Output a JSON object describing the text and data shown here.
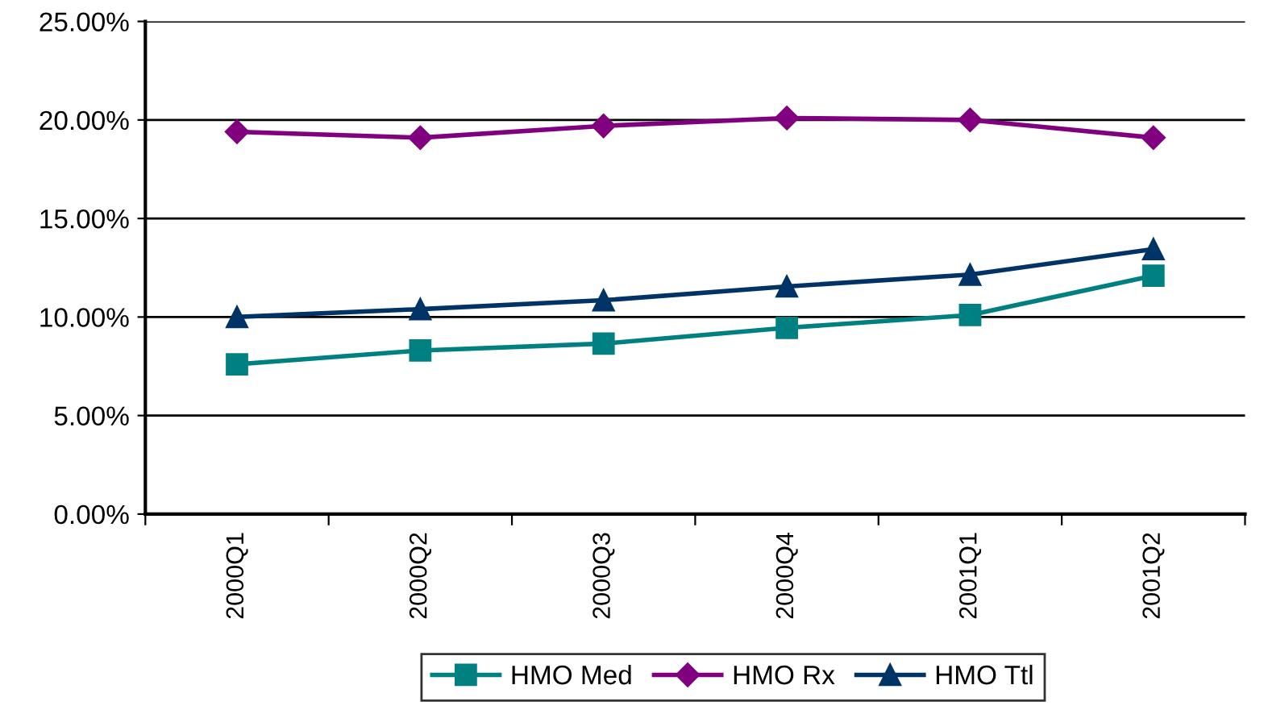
{
  "chart_data": {
    "type": "line",
    "categories": [
      "2000Q1",
      "2000Q2",
      "2000Q3",
      "2000Q4",
      "2001Q1",
      "2001Q2"
    ],
    "series": [
      {
        "name": "HMO Med",
        "color": "#008080",
        "marker": "square",
        "values": [
          7.6,
          8.3,
          8.65,
          9.45,
          10.1,
          12.1
        ]
      },
      {
        "name": "HMO Rx",
        "color": "#800080",
        "marker": "diamond",
        "values": [
          19.4,
          19.1,
          19.7,
          20.1,
          20.0,
          19.1
        ]
      },
      {
        "name": "HMO Ttl",
        "color": "#003366",
        "marker": "triangle",
        "values": [
          10.0,
          10.4,
          10.85,
          11.55,
          12.15,
          13.45
        ]
      }
    ],
    "ylim": [
      0,
      25
    ],
    "yticks": [
      {
        "value": 0,
        "label": "0.00%"
      },
      {
        "value": 5,
        "label": "5.00%"
      },
      {
        "value": 10,
        "label": "10.00%"
      },
      {
        "value": 15,
        "label": "15.00%"
      },
      {
        "value": 20,
        "label": "20.00%"
      },
      {
        "value": 25,
        "label": "25.00%"
      }
    ],
    "grid": "y",
    "legend": "bottom",
    "line_style": "solid"
  }
}
